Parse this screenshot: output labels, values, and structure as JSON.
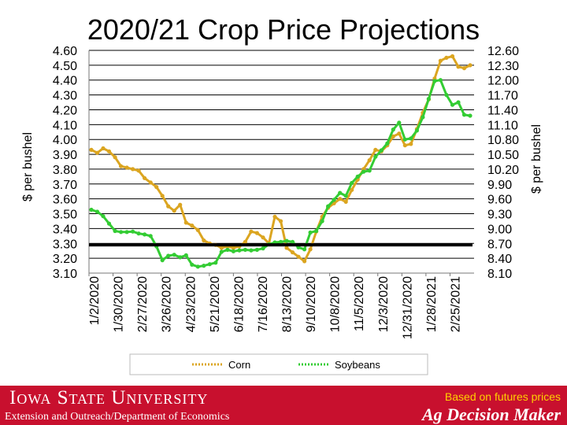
{
  "title": "2020/21 Crop Price Projections",
  "chart_data": {
    "type": "line",
    "title": "2020/21 Crop Price Projections",
    "xlabel": "",
    "ylabel": "$ per bushel",
    "y2label": "$ per bushel",
    "x_tick_labels": [
      "1/2/2020",
      "1/30/2020",
      "2/27/2020",
      "3/26/2020",
      "4/23/2020",
      "5/21/2020",
      "6/18/2020",
      "7/16/2020",
      "8/13/2020",
      "9/10/2020",
      "10/8/2020",
      "11/5/2020",
      "12/3/2020",
      "12/31/2020",
      "1/28/2021",
      "2/25/2021"
    ],
    "y_left_ticks": [
      "4.60",
      "4.50",
      "4.40",
      "4.30",
      "4.20",
      "4.10",
      "4.00",
      "3.90",
      "3.80",
      "3.70",
      "3.60",
      "3.50",
      "3.40",
      "3.30",
      "3.20",
      "3.10"
    ],
    "y_right_ticks": [
      "12.60",
      "12.30",
      "12.00",
      "11.70",
      "11.40",
      "11.10",
      "10.80",
      "10.50",
      "10.20",
      "9.90",
      "9.60",
      "9.30",
      "9.00",
      "8.70",
      "8.40",
      "8.10"
    ],
    "ylim": [
      3.1,
      4.6
    ],
    "y2lim": [
      8.1,
      12.6
    ],
    "grid": "horizontal",
    "legend_position": "bottom",
    "reference_line": {
      "axis": "left",
      "value": 3.29,
      "color": "#000000"
    },
    "series": [
      {
        "name": "Corn",
        "axis": "left",
        "color": "#dba520",
        "x": [
          0,
          1,
          2,
          3,
          4,
          5,
          6,
          7,
          8,
          9,
          10,
          11,
          12,
          13,
          14,
          15,
          16,
          17,
          18,
          19,
          20,
          21,
          22,
          23,
          24,
          25,
          26,
          27,
          28,
          29,
          30,
          31,
          32,
          33,
          34,
          35,
          36,
          37,
          38,
          39,
          40,
          41,
          42,
          43,
          44,
          45,
          46,
          47,
          48,
          49,
          50,
          51,
          52,
          53,
          54,
          55,
          56,
          57,
          58,
          59,
          60,
          61,
          62,
          63,
          64
        ],
        "values": [
          3.93,
          3.91,
          3.94,
          3.92,
          3.88,
          3.82,
          3.81,
          3.8,
          3.79,
          3.74,
          3.71,
          3.68,
          3.62,
          3.55,
          3.52,
          3.56,
          3.44,
          3.42,
          3.39,
          3.32,
          3.3,
          3.29,
          3.27,
          3.28,
          3.27,
          3.28,
          3.31,
          3.38,
          3.37,
          3.34,
          3.3,
          3.48,
          3.45,
          3.27,
          3.24,
          3.21,
          3.18,
          3.26,
          3.38,
          3.48,
          3.54,
          3.57,
          3.6,
          3.58,
          3.66,
          3.73,
          3.8,
          3.86,
          3.93,
          3.92,
          3.96,
          4.02,
          4.04,
          3.96,
          3.97,
          4.07,
          4.18,
          4.27,
          4.41,
          4.53,
          4.55,
          4.56,
          4.49,
          4.48,
          4.5
        ]
      },
      {
        "name": "Soybeans",
        "axis": "right",
        "color": "#33cc33",
        "x": [
          0,
          1,
          2,
          3,
          4,
          5,
          6,
          7,
          8,
          9,
          10,
          11,
          12,
          13,
          14,
          15,
          16,
          17,
          18,
          19,
          20,
          21,
          22,
          23,
          24,
          25,
          26,
          27,
          28,
          29,
          30,
          31,
          32,
          33,
          34,
          35,
          36,
          37,
          38,
          39,
          40,
          41,
          42,
          43,
          44,
          45,
          46,
          47,
          48,
          49,
          50,
          51,
          52,
          53,
          54,
          55,
          56,
          57,
          58,
          59,
          60,
          61,
          62,
          63,
          64
        ],
        "values": [
          9.38,
          9.34,
          9.25,
          9.1,
          8.95,
          8.93,
          8.93,
          8.94,
          8.9,
          8.88,
          8.85,
          8.64,
          8.36,
          8.45,
          8.47,
          8.42,
          8.46,
          8.27,
          8.23,
          8.25,
          8.28,
          8.31,
          8.53,
          8.57,
          8.54,
          8.56,
          8.57,
          8.56,
          8.57,
          8.6,
          8.68,
          8.72,
          8.73,
          8.75,
          8.73,
          8.62,
          8.58,
          8.92,
          8.95,
          9.15,
          9.45,
          9.58,
          9.72,
          9.66,
          9.92,
          10.05,
          10.15,
          10.17,
          10.45,
          10.58,
          10.72,
          11.0,
          11.14,
          10.8,
          10.82,
          10.98,
          11.25,
          11.62,
          11.98,
          12.0,
          11.7,
          11.5,
          11.55,
          11.3,
          11.28
        ]
      }
    ]
  },
  "legend": {
    "corn": "Corn",
    "soybeans": "Soybeans"
  },
  "footer": {
    "brand": "Iowa State University",
    "department": "Extension and Outreach/Department of Economics",
    "note": "Based on futures prices",
    "adm": "Ag Decision Maker"
  },
  "colors": {
    "footer_bg": "#c8102e",
    "corn": "#dba520",
    "soybeans": "#33cc33",
    "note": "#ffd200"
  }
}
